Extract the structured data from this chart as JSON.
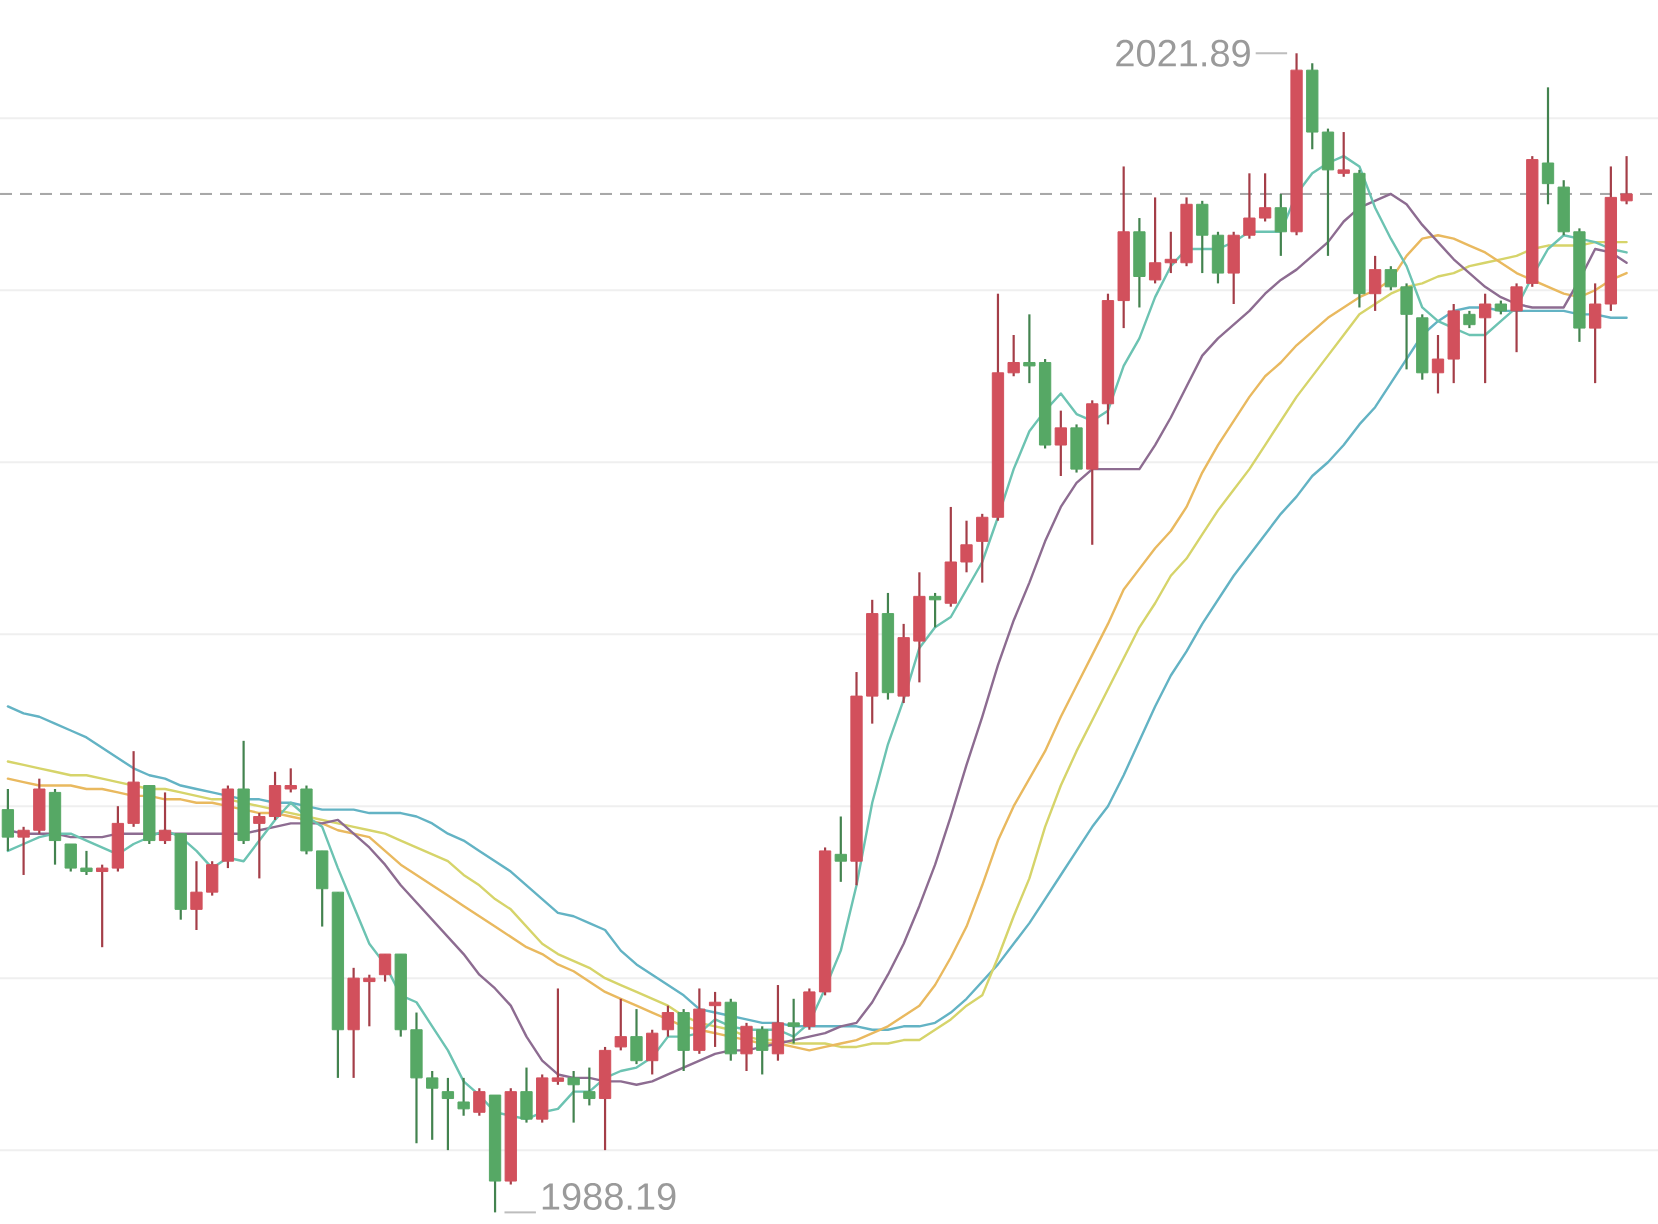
{
  "chart_data": {
    "type": "candlestick",
    "categories": [
      null,
      null,
      null,
      null,
      null,
      null,
      null,
      null,
      null,
      null,
      null,
      null,
      null,
      null,
      null,
      null,
      null,
      null,
      null,
      null,
      null,
      null,
      null,
      null,
      null,
      null,
      null,
      null,
      null,
      null,
      null,
      null,
      null,
      null,
      null,
      null,
      null,
      null,
      null,
      null,
      null,
      null,
      null,
      null,
      null,
      null,
      null,
      null,
      null,
      null,
      null,
      null,
      null,
      null,
      null,
      null,
      null,
      null,
      null,
      null,
      null,
      null,
      null,
      null,
      null,
      null,
      null,
      null,
      null,
      null,
      null,
      null,
      null,
      null,
      null,
      null,
      null,
      null,
      null,
      null,
      null,
      null,
      null,
      null,
      null,
      null,
      null,
      null,
      null,
      null,
      null,
      null,
      null,
      null,
      null,
      null,
      null,
      null,
      null,
      null,
      null,
      null,
      null,
      null
    ],
    "ohlc": [
      [
        1999.9,
        2000.5,
        1998.7,
        1999.1
      ],
      [
        1999.1,
        1999.4,
        1998.0,
        1999.3
      ],
      [
        1999.3,
        2000.8,
        1999.2,
        2000.5
      ],
      [
        2000.4,
        2000.5,
        1998.3,
        1999.0
      ],
      [
        1998.9,
        1998.9,
        1998.1,
        1998.2
      ],
      [
        1998.2,
        1998.7,
        1998.0,
        1998.1
      ],
      [
        1998.1,
        1998.3,
        1995.9,
        1998.2
      ],
      [
        1998.2,
        2000.0,
        1998.1,
        1999.5
      ],
      [
        1999.5,
        2001.6,
        1999.4,
        2000.7
      ],
      [
        2000.6,
        2000.6,
        1998.9,
        1999.0
      ],
      [
        1999.0,
        2000.4,
        1998.9,
        1999.3
      ],
      [
        1999.2,
        1999.2,
        1996.7,
        1997.0
      ],
      [
        1997.0,
        1998.4,
        1996.4,
        1997.5
      ],
      [
        1997.5,
        1998.4,
        1997.4,
        1998.3
      ],
      [
        1998.4,
        2000.6,
        1998.2,
        2000.5
      ],
      [
        2000.5,
        2001.9,
        1998.9,
        1999.0
      ],
      [
        1999.5,
        1999.8,
        1997.9,
        1999.7
      ],
      [
        1999.7,
        2001.0,
        1999.6,
        2000.6
      ],
      [
        2000.5,
        2001.1,
        2000.4,
        2000.6
      ],
      [
        2000.5,
        2000.6,
        1998.6,
        1998.7
      ],
      [
        1998.7,
        1998.7,
        1996.5,
        1997.6
      ],
      [
        1997.5,
        1997.5,
        1992.1,
        1993.5
      ],
      [
        1993.5,
        1995.3,
        1992.1,
        1995.0
      ],
      [
        1994.9,
        1995.1,
        1993.6,
        1995.0
      ],
      [
        1995.1,
        1995.7,
        1994.9,
        1995.7
      ],
      [
        1995.7,
        1995.7,
        1993.3,
        1993.5
      ],
      [
        1993.5,
        1994.0,
        1990.2,
        1992.1
      ],
      [
        1992.1,
        1992.3,
        1990.3,
        1991.8
      ],
      [
        1991.7,
        1992.1,
        1990.0,
        1991.5
      ],
      [
        1991.4,
        1992.1,
        1991.0,
        1991.2
      ],
      [
        1991.1,
        1991.8,
        1991.0,
        1991.7
      ],
      [
        1991.6,
        1991.6,
        1988.19,
        1989.1
      ],
      [
        1989.1,
        1991.8,
        1989.0,
        1991.7
      ],
      [
        1991.7,
        1992.4,
        1990.8,
        1990.9
      ],
      [
        1990.9,
        1992.2,
        1990.8,
        1992.1
      ],
      [
        1992.0,
        1994.7,
        1991.9,
        1992.1
      ],
      [
        1992.1,
        1992.3,
        1990.8,
        1991.9
      ],
      [
        1991.7,
        1992.4,
        1991.3,
        1991.5
      ],
      [
        1991.5,
        1993.0,
        1990.0,
        1992.9
      ],
      [
        1993.0,
        1994.4,
        1992.9,
        1993.3
      ],
      [
        1993.3,
        1994.1,
        1992.5,
        1992.6
      ],
      [
        1992.6,
        1993.5,
        1992.2,
        1993.4
      ],
      [
        1993.5,
        1994.2,
        1993.3,
        1994.0
      ],
      [
        1994.0,
        1994.1,
        1992.3,
        1992.9
      ],
      [
        1992.9,
        1994.7,
        1992.8,
        1994.1
      ],
      [
        1994.2,
        1994.6,
        1993.0,
        1994.3
      ],
      [
        1994.3,
        1994.4,
        1992.6,
        1992.8
      ],
      [
        1992.8,
        1993.7,
        1992.3,
        1993.6
      ],
      [
        1993.5,
        1993.6,
        1992.2,
        1992.9
      ],
      [
        1992.8,
        1994.8,
        1992.6,
        1993.7
      ],
      [
        1993.7,
        1994.4,
        1993.1,
        1993.6
      ],
      [
        1993.6,
        1994.7,
        1993.5,
        1994.6
      ],
      [
        1994.6,
        1998.8,
        1994.5,
        1998.7
      ],
      [
        1998.6,
        1999.7,
        1997.8,
        1998.4
      ],
      [
        1998.4,
        2003.9,
        1997.7,
        2003.2
      ],
      [
        2003.2,
        2006.0,
        2002.4,
        2005.6
      ],
      [
        2005.6,
        2006.2,
        2003.1,
        2003.3
      ],
      [
        2003.2,
        2005.3,
        2003.0,
        2004.9
      ],
      [
        2004.8,
        2006.8,
        2003.6,
        2006.1
      ],
      [
        2006.1,
        2006.2,
        2005.2,
        2006.0
      ],
      [
        2005.9,
        2008.7,
        2005.8,
        2007.1
      ],
      [
        2007.1,
        2008.3,
        2006.8,
        2007.6
      ],
      [
        2007.7,
        2008.5,
        2006.5,
        2008.4
      ],
      [
        2008.4,
        2014.9,
        2008.3,
        2012.6
      ],
      [
        2012.6,
        2013.7,
        2012.5,
        2012.9
      ],
      [
        2012.9,
        2014.3,
        2012.3,
        2012.8
      ],
      [
        2012.9,
        2013.0,
        2010.4,
        2010.5
      ],
      [
        2010.5,
        2011.5,
        2009.6,
        2011.0
      ],
      [
        2011.0,
        2011.1,
        2009.7,
        2009.8
      ],
      [
        2009.8,
        2011.8,
        2007.6,
        2011.7
      ],
      [
        2011.7,
        2014.9,
        2011.1,
        2014.7
      ],
      [
        2014.7,
        2018.6,
        2013.9,
        2016.7
      ],
      [
        2016.7,
        2017.1,
        2014.5,
        2015.4
      ],
      [
        2015.3,
        2017.7,
        2015.2,
        2015.8
      ],
      [
        2015.8,
        2016.7,
        2015.5,
        2015.9
      ],
      [
        2015.8,
        2017.7,
        2015.7,
        2017.5
      ],
      [
        2017.5,
        2017.6,
        2015.5,
        2016.6
      ],
      [
        2016.6,
        2016.7,
        2015.2,
        2015.5
      ],
      [
        2015.5,
        2016.7,
        2014.6,
        2016.6
      ],
      [
        2016.6,
        2018.4,
        2016.5,
        2017.1
      ],
      [
        2017.1,
        2018.4,
        2017.0,
        2017.4
      ],
      [
        2017.4,
        2017.8,
        2016.0,
        2016.7
      ],
      [
        2016.7,
        2021.89,
        2016.6,
        2021.4
      ],
      [
        2021.4,
        2021.6,
        2019.1,
        2019.6
      ],
      [
        2019.6,
        2019.7,
        2016.0,
        2018.5
      ],
      [
        2018.4,
        2019.6,
        2018.3,
        2018.5
      ],
      [
        2018.4,
        2018.5,
        2014.5,
        2014.9
      ],
      [
        2014.9,
        2016.0,
        2014.4,
        2015.6
      ],
      [
        2015.6,
        2015.7,
        2015.0,
        2015.1
      ],
      [
        2015.1,
        2015.2,
        2012.7,
        2014.3
      ],
      [
        2014.2,
        2014.3,
        2012.4,
        2012.6
      ],
      [
        2012.6,
        2013.7,
        2012.0,
        2013.0
      ],
      [
        2013.0,
        2014.6,
        2012.3,
        2014.4
      ],
      [
        2014.3,
        2014.4,
        2013.9,
        2014.0
      ],
      [
        2014.2,
        2014.9,
        2012.3,
        2014.6
      ],
      [
        2014.6,
        2014.7,
        2014.3,
        2014.4
      ],
      [
        2014.4,
        2015.2,
        2013.2,
        2015.1
      ],
      [
        2015.2,
        2018.9,
        2015.1,
        2018.8
      ],
      [
        2018.7,
        2020.9,
        2017.5,
        2018.1
      ],
      [
        2018.0,
        2018.2,
        2016.6,
        2016.7
      ],
      [
        2016.7,
        2016.8,
        2013.5,
        2013.9
      ],
      [
        2013.9,
        2015.2,
        2012.3,
        2014.6
      ],
      [
        2014.6,
        2018.6,
        2014.4,
        2017.7
      ],
      [
        2017.6,
        2018.9,
        2017.5,
        2017.8
      ]
    ],
    "colors": [
      "#56a865",
      "#d2505c",
      "#d2505c",
      "#56a865",
      "#56a865",
      "#56a865",
      "#d2505c",
      "#d2505c",
      "#d2505c",
      "#56a865",
      "#d2505c",
      "#56a865",
      "#d2505c",
      "#d2505c",
      "#d2505c",
      "#56a865",
      "#d2505c",
      "#d2505c",
      "#d2505c",
      "#56a865",
      "#56a865",
      "#56a865",
      "#d2505c",
      "#d2505c",
      "#d2505c",
      "#56a865",
      "#56a865",
      "#56a865",
      "#56a865",
      "#56a865",
      "#d2505c",
      "#56a865",
      "#d2505c",
      "#56a865",
      "#d2505c",
      "#d2505c",
      "#56a865",
      "#56a865",
      "#d2505c",
      "#d2505c",
      "#56a865",
      "#d2505c",
      "#d2505c",
      "#56a865",
      "#d2505c",
      "#d2505c",
      "#56a865",
      "#d2505c",
      "#56a865",
      "#d2505c",
      "#56a865",
      "#d2505c",
      "#d2505c",
      "#56a865",
      "#d2505c",
      "#d2505c",
      "#56a865",
      "#d2505c",
      "#d2505c",
      "#56a865",
      "#d2505c",
      "#d2505c",
      "#d2505c",
      "#d2505c",
      "#d2505c",
      "#56a865",
      "#56a865",
      "#d2505c",
      "#56a865",
      "#d2505c",
      "#d2505c",
      "#d2505c",
      "#56a865",
      "#d2505c",
      "#d2505c",
      "#d2505c",
      "#56a865",
      "#56a865",
      "#d2505c",
      "#d2505c",
      "#d2505c",
      "#56a865",
      "#d2505c",
      "#56a865",
      "#56a865",
      "#d2505c",
      "#56a865",
      "#d2505c",
      "#56a865",
      "#56a865",
      "#56a865",
      "#d2505c",
      "#d2505c",
      "#56a865",
      "#d2505c",
      "#56a865",
      "#d2505c",
      "#d2505c",
      "#56a865",
      "#56a865",
      "#56a865",
      "#d2505c",
      "#d2505c",
      "#d2505c"
    ],
    "series": [
      {
        "type": "line",
        "color": "#63b3c4",
        "values": [
          2002.9,
          2002.7,
          2002.6,
          2002.4,
          2002.2,
          2002.0,
          2001.7,
          2001.4,
          2001.1,
          2000.9,
          2000.8,
          2000.6,
          2000.5,
          2000.4,
          2000.3,
          2000.2,
          2000.2,
          2000.1,
          2000.1,
          2000.0,
          1999.9,
          1999.9,
          1999.9,
          1999.8,
          1999.8,
          1999.8,
          1999.7,
          1999.5,
          1999.2,
          1999.0,
          1998.7,
          1998.4,
          1998.1,
          1997.7,
          1997.3,
          1996.9,
          1996.8,
          1996.6,
          1996.4,
          1995.8,
          1995.4,
          1995.1,
          1994.8,
          1994.5,
          1994.1,
          1994.0,
          1993.9,
          1993.8,
          1993.7,
          1993.7,
          1993.6,
          1993.6,
          1993.6,
          1993.6,
          1993.6,
          1993.5,
          1993.5,
          1993.6,
          1993.6,
          1993.7,
          1994.0,
          1994.4,
          1994.9,
          1995.4,
          1996.0,
          1996.6,
          1997.3,
          1998.0,
          1998.7,
          1999.4,
          2000.0,
          2000.9,
          2001.9,
          2002.9,
          2003.8,
          2004.5,
          2005.3,
          2006.0,
          2006.7,
          2007.3,
          2007.9,
          2008.5,
          2009.0,
          2009.6,
          2010.0,
          2010.5,
          2011.1,
          2011.6,
          2012.3,
          2013.0,
          2013.7,
          2014.1,
          2014.4,
          2014.5,
          2014.5,
          2014.4,
          2014.4,
          2014.4,
          2014.4,
          2014.4,
          2014.3,
          2014.3,
          2014.2,
          2014.2
        ]
      },
      {
        "type": "line",
        "color": "#d6d46a",
        "values": [
          2001.3,
          2001.2,
          2001.1,
          2001.0,
          2000.9,
          2000.9,
          2000.8,
          2000.7,
          2000.6,
          2000.5,
          2000.5,
          2000.4,
          2000.3,
          2000.2,
          2000.2,
          2000.1,
          2000.0,
          1999.9,
          1999.8,
          1999.7,
          1999.6,
          1999.5,
          1999.4,
          1999.3,
          1999.2,
          1999.0,
          1998.8,
          1998.6,
          1998.4,
          1998.0,
          1997.7,
          1997.3,
          1997.0,
          1996.5,
          1996.0,
          1995.7,
          1995.5,
          1995.3,
          1995.0,
          1994.8,
          1994.6,
          1994.4,
          1994.2,
          1993.9,
          1993.7,
          1993.6,
          1993.5,
          1993.3,
          1993.2,
          1993.2,
          1993.1,
          1993.1,
          1993.1,
          1993.0,
          1993.0,
          1993.1,
          1993.1,
          1993.2,
          1993.2,
          1993.5,
          1993.8,
          1994.2,
          1994.5,
          1995.6,
          1996.8,
          1997.9,
          1999.4,
          2000.6,
          2001.6,
          2002.5,
          2003.4,
          2004.3,
          2005.2,
          2005.9,
          2006.7,
          2007.2,
          2007.9,
          2008.6,
          2009.2,
          2009.8,
          2010.5,
          2011.2,
          2011.9,
          2012.5,
          2013.1,
          2013.7,
          2014.3,
          2014.6,
          2014.9,
          2015.1,
          2015.2,
          2015.4,
          2015.5,
          2015.7,
          2015.8,
          2015.9,
          2016.0,
          2016.2,
          2016.3,
          2016.3,
          2016.3,
          2016.4,
          2016.4,
          2016.4
        ]
      },
      {
        "type": "line",
        "color": "#e9b95f",
        "values": [
          2000.8,
          2000.7,
          2000.6,
          2000.6,
          2000.6,
          2000.5,
          2000.5,
          2000.4,
          2000.3,
          2000.3,
          2000.2,
          2000.2,
          2000.1,
          2000.1,
          2000.0,
          1999.9,
          1999.8,
          1999.8,
          1999.7,
          1999.6,
          1999.5,
          1999.3,
          1999.2,
          1999.1,
          1998.7,
          1998.3,
          1998.0,
          1997.7,
          1997.4,
          1997.1,
          1996.8,
          1996.5,
          1996.2,
          1995.9,
          1995.7,
          1995.4,
          1995.2,
          1994.9,
          1994.6,
          1994.4,
          1994.2,
          1994.0,
          1993.8,
          1993.6,
          1993.5,
          1993.4,
          1993.3,
          1993.2,
          1993.1,
          1993.1,
          1993.0,
          1992.9,
          1993.0,
          1993.1,
          1993.2,
          1993.4,
          1993.6,
          1993.9,
          1994.2,
          1994.8,
          1995.6,
          1996.5,
          1997.7,
          1999.0,
          2000.0,
          2000.8,
          2001.6,
          2002.6,
          2003.5,
          2004.4,
          2005.3,
          2006.3,
          2006.9,
          2007.5,
          2008.0,
          2008.7,
          2009.7,
          2010.5,
          2011.2,
          2011.9,
          2012.5,
          2012.9,
          2013.4,
          2013.8,
          2014.2,
          2014.5,
          2014.8,
          2015.0,
          2015.3,
          2016.0,
          2016.5,
          2016.6,
          2016.5,
          2016.3,
          2016.1,
          2015.8,
          2015.5,
          2015.3,
          2015.1,
          2014.9,
          2014.8,
          2015.0,
          2015.3,
          2015.5
        ]
      },
      {
        "type": "line",
        "color": "#8d6c91",
        "values": [
          1999.3,
          1999.2,
          1999.2,
          1999.2,
          1999.1,
          1999.1,
          1999.1,
          1999.2,
          1999.2,
          1999.2,
          1999.2,
          1999.2,
          1999.2,
          1999.2,
          1999.2,
          1999.2,
          1999.3,
          1999.4,
          1999.5,
          1999.5,
          1999.5,
          1999.6,
          1999.2,
          1998.8,
          1998.3,
          1997.7,
          1997.2,
          1996.7,
          1996.2,
          1995.7,
          1995.1,
          1994.7,
          1994.2,
          1993.3,
          1992.6,
          1992.2,
          1992.1,
          1992.1,
          1992.0,
          1992.0,
          1991.9,
          1992.0,
          1992.2,
          1992.4,
          1992.6,
          1992.8,
          1992.9,
          1992.9,
          1993.0,
          1993.1,
          1993.2,
          1993.3,
          1993.4,
          1993.6,
          1993.7,
          1994.3,
          1995.1,
          1996.0,
          1997.1,
          1998.3,
          1999.7,
          2001.2,
          2002.6,
          2004.1,
          2005.4,
          2006.5,
          2007.7,
          2008.7,
          2009.4,
          2009.8,
          2009.8,
          2009.8,
          2009.8,
          2010.5,
          2011.3,
          2012.2,
          2013.1,
          2013.6,
          2014.0,
          2014.4,
          2014.9,
          2015.3,
          2015.6,
          2016.0,
          2016.4,
          2017.0,
          2017.4,
          2017.6,
          2017.8,
          2017.5,
          2016.9,
          2016.4,
          2015.9,
          2015.5,
          2015.1,
          2014.8,
          2014.6,
          2014.5,
          2014.5,
          2014.5,
          2015.3,
          2016.2,
          2016.1,
          2015.8
        ]
      },
      {
        "type": "line",
        "color": "#6cc3b2",
        "values": [
          1998.7,
          1998.9,
          1999.1,
          1999.2,
          1999.2,
          1999.0,
          1998.8,
          1998.6,
          1998.9,
          1999.1,
          1999.3,
          1999.1,
          1998.7,
          1998.2,
          1998.5,
          1998.4,
          1999.0,
          1999.6,
          2000.1,
          1999.7,
          1999.4,
          1998.2,
          1997.1,
          1996.0,
          1995.4,
          1994.5,
          1994.3,
          1993.6,
          1992.9,
          1992.0,
          1991.6,
          1991.1,
          1991.0,
          1990.9,
          1991.1,
          1991.2,
          1991.7,
          1991.7,
          1992.1,
          1992.3,
          1992.4,
          1992.7,
          1993.3,
          1993.3,
          1993.4,
          1993.8,
          1993.6,
          1993.5,
          1993.5,
          1993.5,
          1993.3,
          1993.7,
          1994.7,
          1995.8,
          1997.7,
          2000.1,
          2001.8,
          2003.1,
          2004.6,
          2005.2,
          2005.5,
          2006.3,
          2007.1,
          2008.4,
          2009.8,
          2010.9,
          2011.5,
          2012.0,
          2011.4,
          2011.2,
          2011.5,
          2012.8,
          2013.6,
          2014.8,
          2015.7,
          2016.2,
          2016.2,
          2016.2,
          2016.4,
          2016.7,
          2016.7,
          2016.7,
          2017.8,
          2018.4,
          2018.7,
          2018.9,
          2018.6,
          2017.4,
          2016.5,
          2015.7,
          2014.5,
          2014.1,
          2013.9,
          2013.7,
          2013.7,
          2014.1,
          2014.5,
          2015.4,
          2016.2,
          2016.6,
          2016.5,
          2016.4,
          2016.2,
          2016.1
        ]
      }
    ],
    "yticks": [
      {
        "value": 1990,
        "label": null
      },
      {
        "value": 1995,
        "label": null
      },
      {
        "value": 2000,
        "label": null
      },
      {
        "value": 2005,
        "label": null
      },
      {
        "value": 2010,
        "label": null
      },
      {
        "value": 2015,
        "label": null
      },
      {
        "value": 2020,
        "label": null
      }
    ],
    "grid": "y",
    "ref_lines": [
      {
        "axis": "y",
        "value": 2017.8,
        "color": "#a8a8a8",
        "line_style": "dashed"
      }
    ],
    "annotations": [
      "2021.89",
      "1988.19"
    ]
  }
}
